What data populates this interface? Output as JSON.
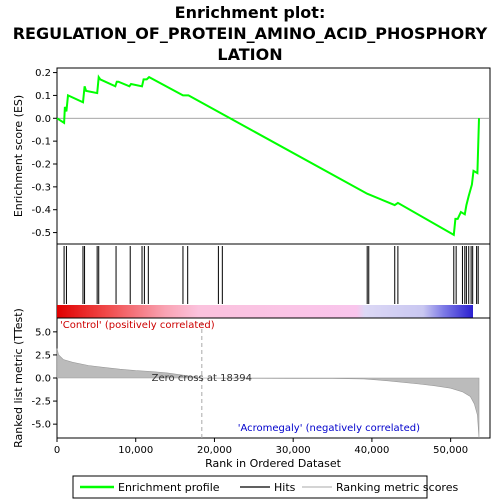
{
  "chart_data": {
    "type": "line",
    "title_lines": [
      "Enrichment plot:",
      "REGULATION_OF_PROTEIN_AMINO_ACID_PHOSPHORY",
      "LATION"
    ],
    "xlabel": "Rank in Ordered Dataset",
    "es_panel": {
      "ylabel": "Enrichment score (ES)",
      "ylim": [
        -0.55,
        0.22
      ],
      "yticks": [
        0.2,
        0.1,
        0.0,
        -0.1,
        -0.2,
        -0.3,
        -0.4,
        -0.5
      ],
      "ytick_labels": [
        "0.2",
        "0.1",
        "0.0",
        "-0.1",
        "-0.2",
        "-0.3",
        "-0.4",
        "-0.5"
      ],
      "series": [
        {
          "name": "Enrichment profile",
          "color": "#00ff00",
          "x": [
            0,
            900,
            1000,
            1200,
            1400,
            3300,
            3500,
            3700,
            5100,
            5300,
            5500,
            7400,
            7600,
            7800,
            9200,
            9400,
            10800,
            11000,
            11400,
            11700,
            16000,
            16500,
            16700,
            39400,
            42900,
            43300,
            50400,
            50600,
            50900,
            51300,
            51800,
            52000,
            52300,
            52700,
            52900,
            53400,
            53600
          ],
          "y": [
            0.0,
            -0.02,
            0.05,
            0.03,
            0.1,
            0.07,
            0.14,
            0.12,
            0.11,
            0.18,
            0.17,
            0.14,
            0.16,
            0.16,
            0.14,
            0.15,
            0.14,
            0.17,
            0.17,
            0.18,
            0.1,
            0.1,
            0.1,
            -0.33,
            -0.38,
            -0.37,
            -0.51,
            -0.44,
            -0.44,
            -0.41,
            -0.42,
            -0.38,
            -0.34,
            -0.29,
            -0.23,
            -0.24,
            0.0
          ]
        }
      ]
    },
    "hits_panel": {
      "legend_name": "Hits",
      "hit_positions": [
        900,
        1200,
        3300,
        3500,
        5100,
        5300,
        7500,
        9300,
        10800,
        11100,
        11600,
        16000,
        16600,
        20500,
        21000,
        39400,
        39600,
        42900,
        43300,
        50400,
        50700,
        51500,
        51800,
        52000,
        52300,
        52600,
        52800,
        53300,
        53500
      ]
    },
    "ranking_panel": {
      "ylabel": "Ranked list metric (TTest)",
      "legend_name": "Ranking metric scores",
      "ylim": [
        -6.5,
        6.5
      ],
      "yticks": [
        5.0,
        2.5,
        0.0,
        -2.5,
        -5.0
      ],
      "ytick_labels": [
        "5.0",
        "2.5",
        "0.0",
        "-2.5",
        "-5.0"
      ],
      "x": [
        0,
        200,
        800,
        2000,
        4000,
        6000,
        8000,
        10000,
        12000,
        14000,
        16000,
        18394,
        20000,
        25000,
        30000,
        35000,
        39000,
        42000,
        46000,
        48000,
        50000,
        51500,
        52500,
        53000,
        53400,
        53600
      ],
      "y": [
        3.2,
        2.5,
        2.0,
        1.7,
        1.35,
        1.15,
        0.95,
        0.8,
        0.7,
        0.55,
        0.3,
        0.0,
        -0.02,
        -0.03,
        -0.04,
        -0.05,
        -0.1,
        -0.3,
        -0.65,
        -0.85,
        -1.1,
        -1.5,
        -2.0,
        -2.8,
        -4.0,
        -6.5
      ],
      "zero_cross_text": "Zero cross at 18394",
      "pos_label": "'Control' (positively correlated)",
      "neg_label": "'Acromegaly' (negatively correlated)"
    },
    "xlim": [
      0,
      55000
    ],
    "xticks": [
      0,
      10000,
      20000,
      30000,
      40000,
      50000
    ],
    "xtick_labels": [
      "0",
      "10,000",
      "20,000",
      "30,000",
      "40,000",
      "50,000"
    ],
    "legend": {
      "items": [
        "Enrichment profile",
        "Hits",
        "Ranking metric scores"
      ],
      "placement": "bottom"
    }
  }
}
